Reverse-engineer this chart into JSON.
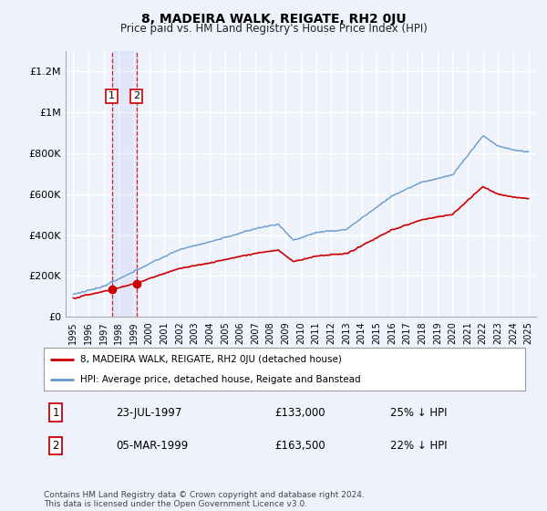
{
  "title": "8, MADEIRA WALK, REIGATE, RH2 0JU",
  "subtitle": "Price paid vs. HM Land Registry's House Price Index (HPI)",
  "legend_line1": "8, MADEIRA WALK, REIGATE, RH2 0JU (detached house)",
  "legend_line2": "HPI: Average price, detached house, Reigate and Banstead",
  "footer": "Contains HM Land Registry data © Crown copyright and database right 2024.\nThis data is licensed under the Open Government Licence v3.0.",
  "sale1_date": "23-JUL-1997",
  "sale1_price": "£133,000",
  "sale1_hpi": "25% ↓ HPI",
  "sale2_date": "05-MAR-1999",
  "sale2_price": "£163,500",
  "sale2_hpi": "22% ↓ HPI",
  "sale1_x": 1997.55,
  "sale1_y": 133000,
  "sale2_x": 1999.17,
  "sale2_y": 163500,
  "ylim": [
    0,
    1300000
  ],
  "xlim": [
    1994.5,
    2025.5
  ],
  "yticks": [
    0,
    200000,
    400000,
    600000,
    800000,
    1000000,
    1200000
  ],
  "ytick_labels": [
    "£0",
    "£200K",
    "£400K",
    "£600K",
    "£800K",
    "£1M",
    "£1.2M"
  ],
  "background_color": "#eef2fb",
  "red_line_color": "#cc0000",
  "blue_line_color": "#6699cc",
  "vline_color": "#cc0000",
  "grid_color": "#ffffff",
  "xtick_years": [
    1995,
    1996,
    1997,
    1998,
    1999,
    2000,
    2001,
    2002,
    2003,
    2004,
    2005,
    2006,
    2007,
    2008,
    2009,
    2010,
    2011,
    2012,
    2013,
    2014,
    2015,
    2016,
    2017,
    2018,
    2019,
    2020,
    2021,
    2022,
    2023,
    2024,
    2025
  ]
}
